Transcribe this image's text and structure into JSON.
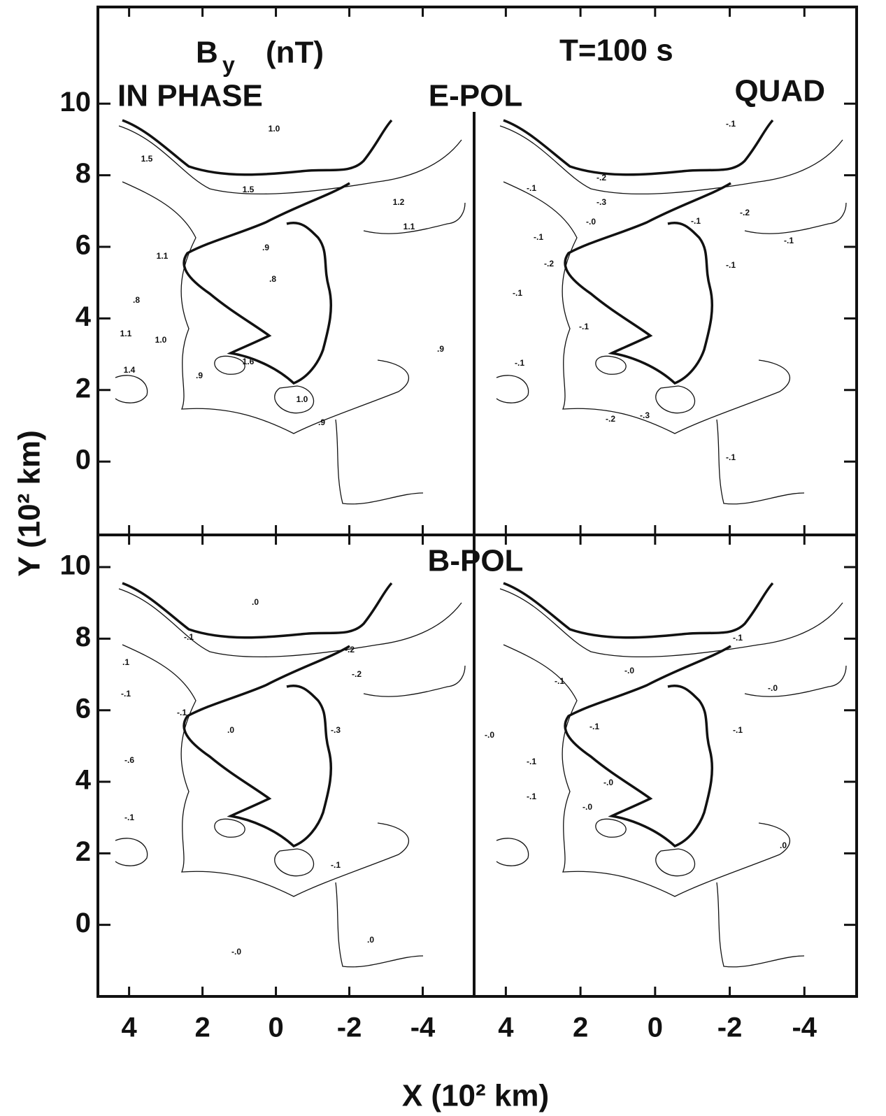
{
  "chart_data": {
    "type": "contour",
    "title_variable": "B",
    "title_subscript": "y",
    "title_unit": "(nT)",
    "period": "T=100 s",
    "column_labels": [
      "IN PHASE",
      "QUAD"
    ],
    "xlabel": "X (10² km)",
    "ylabel": "Y (10² km)",
    "xlim": [
      4.85,
      -5.4
    ],
    "xticks": [
      4,
      2,
      0,
      -2,
      -4
    ],
    "panels": [
      {
        "label": "E-POL",
        "ylim": [
          -2.05,
          12.7
        ],
        "yticks": [
          0,
          2,
          4,
          6,
          8,
          10
        ],
        "levels": [
          [
            1.0,
            1.5,
            1.5,
            1.2,
            1.1,
            1.1,
            0.9,
            0.8,
            0.8,
            1.0,
            1.1,
            0.9,
            0.9,
            1.4,
            1.6,
            1.0,
            0.9
          ],
          [
            -0.1,
            -0.2,
            -0.1,
            -0.3,
            0,
            -0.2,
            -0.1,
            -0.1,
            -0.2,
            -0.1,
            -0.1,
            -0.1,
            -0.1,
            -0.2,
            -0.3,
            -0.1,
            -0.1
          ]
        ],
        "level_labels": [
          [
            "1.0",
            "1.5",
            "1.5",
            "1.2",
            "1.1",
            "1.1",
            ".9",
            ".8",
            ".8",
            "1.0",
            "1.1",
            ".9",
            ".9",
            "1.4",
            "1.6",
            "1.0",
            ".9"
          ],
          [
            "-.1",
            "-.2",
            "-.1",
            "-.3",
            "-.0",
            "-.2",
            "-.1",
            "-.1",
            "-.2",
            "-.1",
            "-.1",
            "-.1",
            "-.1",
            "-.2",
            "-.3",
            "-.1",
            "-.1"
          ]
        ]
      },
      {
        "label": "B-POL",
        "ylim": [
          -2.0,
          10.9
        ],
        "yticks": [
          0,
          2,
          4,
          6,
          8,
          10
        ],
        "levels": [
          [
            0,
            -0.1,
            0.1,
            -0.1,
            -0.2,
            -0.2,
            -0.1,
            0,
            -0.3,
            -0.6,
            -0.1,
            0,
            0,
            -0.1
          ],
          [
            -0.1,
            -0.1,
            0,
            0,
            -0.1,
            -0.1,
            0,
            -0.1,
            0,
            -0.1,
            0,
            0
          ]
        ],
        "level_labels": [
          [
            ".0",
            "-.1",
            ".1",
            "-.1",
            "-.2",
            "-.2",
            "-.1",
            ".0",
            "-.3",
            "-.6",
            "-.1",
            ".0",
            "-.0",
            "-.1"
          ],
          [
            "-.1",
            "-.1",
            "-.0",
            "-.0",
            "-.1",
            "-.1",
            "-.0",
            "-.1",
            "-.0",
            "-.1",
            "-.0",
            ".0"
          ]
        ]
      }
    ]
  }
}
